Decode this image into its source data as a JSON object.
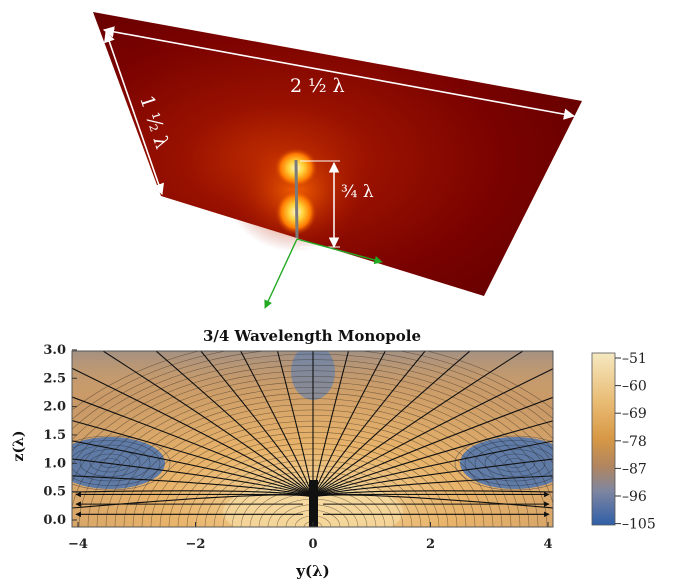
{
  "plate": {
    "width_label": "2 ½ λ",
    "height_label": "1 ½ λ",
    "monopole_label": "¾ λ"
  },
  "plot": {
    "title": "3/4 Wavelength Monopole",
    "xlabel": "y(λ)",
    "ylabel": "z(λ)",
    "x_ticks": [
      "−4",
      "−2",
      "0",
      "2",
      "4"
    ],
    "y_ticks": [
      "0.0",
      "0.5",
      "1.0",
      "1.5",
      "2.0",
      "2.5",
      "3.0"
    ],
    "colorbar_ticks": [
      "51",
      "60",
      "69",
      "78",
      "87",
      "96",
      "105"
    ]
  },
  "colors": {
    "plate_dark": "#6e0000",
    "plate_hot": "#ff9a00",
    "axis_green": "#22aa22",
    "field_warm": "#e7b26c",
    "field_cool": "#4a73b0"
  }
}
